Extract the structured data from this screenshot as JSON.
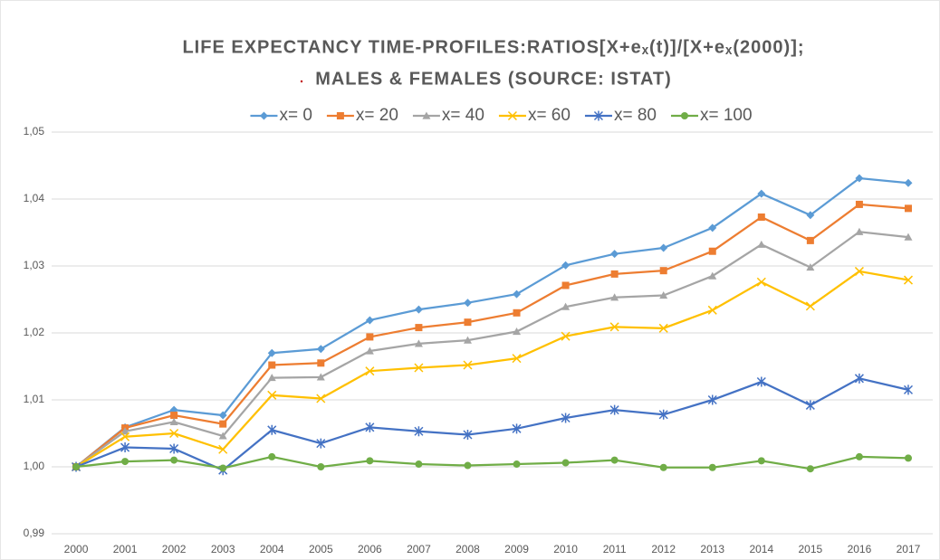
{
  "chart_data": {
    "type": "line",
    "title": "LIFE EXPECTANCY TIME-PROFILES:RATIOS[X+eₓ(t)]/[X+eₓ(2000)];",
    "subtitle": "MALES & FEMALES  (SOURCE: ISTAT)",
    "categories": [
      "2000",
      "2001",
      "2002",
      "2003",
      "2004",
      "2005",
      "2006",
      "2007",
      "2008",
      "2009",
      "2010",
      "2011",
      "2012",
      "2013",
      "2014",
      "2015",
      "2016",
      "2017"
    ],
    "series": [
      {
        "name": "x= 0",
        "color": "#5b9bd5",
        "marker": "diamond",
        "values": [
          1.0,
          1.0059,
          1.0085,
          1.0077,
          1.017,
          1.0176,
          1.0219,
          1.0235,
          1.0245,
          1.0258,
          1.0301,
          1.0318,
          1.0327,
          1.0357,
          1.0408,
          1.0376,
          1.0431,
          1.0424
        ]
      },
      {
        "name": "x= 20",
        "color": "#ed7d31",
        "marker": "square",
        "values": [
          1.0,
          1.0058,
          1.0077,
          1.0064,
          1.0152,
          1.0155,
          1.0194,
          1.0208,
          1.0216,
          1.023,
          1.0271,
          1.0288,
          1.0293,
          1.0322,
          1.0373,
          1.0338,
          1.0392,
          1.0386
        ]
      },
      {
        "name": "x= 40",
        "color": "#a5a5a5",
        "marker": "triangle",
        "values": [
          1.0,
          1.0053,
          1.0067,
          1.0046,
          1.0133,
          1.0134,
          1.0173,
          1.0184,
          1.0189,
          1.0202,
          1.0239,
          1.0253,
          1.0256,
          1.0285,
          1.0332,
          1.0298,
          1.0351,
          1.0343
        ]
      },
      {
        "name": "x= 60",
        "color": "#ffc000",
        "marker": "x",
        "values": [
          1.0,
          1.0045,
          1.005,
          1.0026,
          1.0107,
          1.0102,
          1.0143,
          1.0148,
          1.0152,
          1.0162,
          1.0195,
          1.0209,
          1.0207,
          1.0234,
          1.0276,
          1.024,
          1.0292,
          1.0279
        ]
      },
      {
        "name": "x= 80",
        "color": "#4472c4",
        "marker": "asterisk",
        "values": [
          1.0,
          1.0029,
          1.0027,
          0.9995,
          1.0055,
          1.0035,
          1.0059,
          1.0053,
          1.0048,
          1.0057,
          1.0073,
          1.0085,
          1.0078,
          1.01,
          1.0127,
          1.0092,
          1.0132,
          1.0115
        ]
      },
      {
        "name": "x= 100",
        "color": "#70ad47",
        "marker": "circle",
        "values": [
          1.0,
          1.0008,
          1.001,
          0.9998,
          1.0015,
          1.0,
          1.0009,
          1.0004,
          1.0002,
          1.0004,
          1.0006,
          1.001,
          0.9999,
          0.9999,
          1.0009,
          0.9997,
          1.0015,
          1.0013
        ]
      }
    ],
    "ylim": [
      0.99,
      1.05
    ],
    "yticks": [
      {
        "value": 0.99,
        "label": "0,99"
      },
      {
        "value": 1.0,
        "label": "1,00"
      },
      {
        "value": 1.01,
        "label": "1,01"
      },
      {
        "value": 1.02,
        "label": "1,02"
      },
      {
        "value": 1.03,
        "label": "1,03"
      },
      {
        "value": 1.04,
        "label": "1,04"
      },
      {
        "value": 1.05,
        "label": "1,05"
      }
    ],
    "grid": true,
    "legend": "top"
  }
}
